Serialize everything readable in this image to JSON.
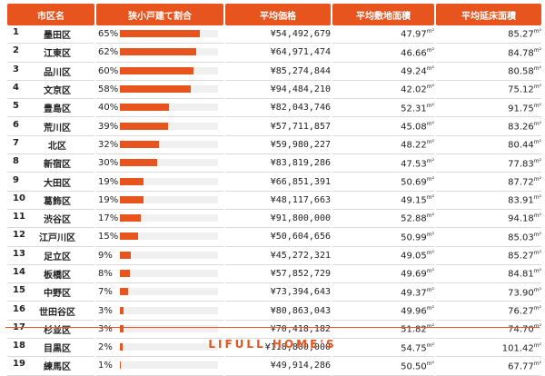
{
  "headers": {
    "city": "市区名",
    "ratio": "狭小戸建て割合",
    "price": "平均価格",
    "land": "平均敷地面積",
    "floor": "平均延床面積"
  },
  "unit_sup": "m²",
  "rows": [
    {
      "rank": "1",
      "city": "墨田区",
      "ratio": "65%",
      "ratio_value": 65,
      "price": "¥54,492,679",
      "land": "47.97",
      "floor": "85.27"
    },
    {
      "rank": "2",
      "city": "江東区",
      "ratio": "62%",
      "ratio_value": 62,
      "price": "¥64,971,474",
      "land": "46.66",
      "floor": "84.78"
    },
    {
      "rank": "3",
      "city": "品川区",
      "ratio": "60%",
      "ratio_value": 60,
      "price": "¥85,274,844",
      "land": "49.24",
      "floor": "80.58"
    },
    {
      "rank": "4",
      "city": "文京区",
      "ratio": "58%",
      "ratio_value": 58,
      "price": "¥94,484,210",
      "land": "42.02",
      "floor": "75.12"
    },
    {
      "rank": "5",
      "city": "豊島区",
      "ratio": "40%",
      "ratio_value": 40,
      "price": "¥82,043,746",
      "land": "52.31",
      "floor": "91.75"
    },
    {
      "rank": "6",
      "city": "荒川区",
      "ratio": "39%",
      "ratio_value": 39,
      "price": "¥57,711,857",
      "land": "45.08",
      "floor": "83.26"
    },
    {
      "rank": "7",
      "city": "北区",
      "ratio": "32%",
      "ratio_value": 32,
      "price": "¥59,980,227",
      "land": "48.22",
      "floor": "80.44"
    },
    {
      "rank": "8",
      "city": "新宿区",
      "ratio": "30%",
      "ratio_value": 30,
      "price": "¥83,819,286",
      "land": "47.53",
      "floor": "77.83"
    },
    {
      "rank": "9",
      "city": "大田区",
      "ratio": "19%",
      "ratio_value": 19,
      "price": "¥66,851,391",
      "land": "50.69",
      "floor": "87.72"
    },
    {
      "rank": "10",
      "city": "葛飾区",
      "ratio": "19%",
      "ratio_value": 19,
      "price": "¥48,117,663",
      "land": "49.15",
      "floor": "83.91"
    },
    {
      "rank": "11",
      "city": "渋谷区",
      "ratio": "17%",
      "ratio_value": 17,
      "price": "¥91,800,000",
      "land": "52.88",
      "floor": "94.18"
    },
    {
      "rank": "12",
      "city": "江戸川区",
      "ratio": "15%",
      "ratio_value": 15,
      "price": "¥50,604,656",
      "land": "50.99",
      "floor": "85.03"
    },
    {
      "rank": "13",
      "city": "足立区",
      "ratio": "9%",
      "ratio_value": 9,
      "price": "¥45,272,321",
      "land": "49.05",
      "floor": "85.27"
    },
    {
      "rank": "14",
      "city": "板橋区",
      "ratio": "8%",
      "ratio_value": 8,
      "price": "¥57,852,729",
      "land": "49.69",
      "floor": "84.81"
    },
    {
      "rank": "15",
      "city": "中野区",
      "ratio": "7%",
      "ratio_value": 7,
      "price": "¥73,394,643",
      "land": "49.37",
      "floor": "73.90"
    },
    {
      "rank": "16",
      "city": "世田谷区",
      "ratio": "3%",
      "ratio_value": 3,
      "price": "¥80,863,043",
      "land": "49.96",
      "floor": "76.27"
    },
    {
      "rank": "17",
      "city": "杉並区",
      "ratio": "3%",
      "ratio_value": 3,
      "price": "¥70,418,182",
      "land": "51.82",
      "floor": "74.70"
    },
    {
      "rank": "18",
      "city": "目黒区",
      "ratio": "2%",
      "ratio_value": 2,
      "price": "¥118,800,000",
      "land": "54.75",
      "floor": "101.42"
    },
    {
      "rank": "19",
      "city": "練馬区",
      "ratio": "1%",
      "ratio_value": 1,
      "price": "¥49,914,286",
      "land": "50.50",
      "floor": "67.77"
    }
  ],
  "brand": "LIFULL HOME'S",
  "colors": {
    "accent": "#e8541e",
    "track": "#f0f0f0"
  }
}
